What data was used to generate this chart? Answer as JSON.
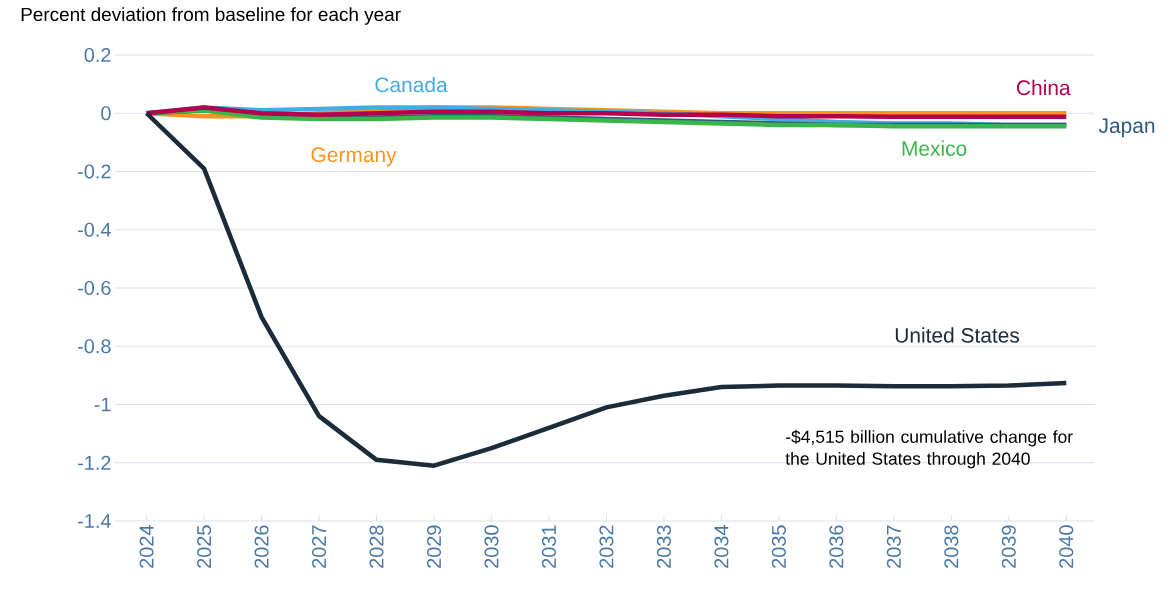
{
  "chart_data": {
    "type": "line",
    "title": "Percent deviation from baseline for each year",
    "categories": [
      "2024",
      "2025",
      "2026",
      "2027",
      "2028",
      "2029",
      "2030",
      "2031",
      "2032",
      "2033",
      "2034",
      "2035",
      "2036",
      "2037",
      "2038",
      "2039",
      "2040"
    ],
    "series": [
      {
        "name": "Germany",
        "color": "#f7941d",
        "values": [
          0,
          -0.01,
          -0.01,
          0,
          0.01,
          0.02,
          0.02,
          0.015,
          0.01,
          0.005,
          0,
          0,
          0,
          0,
          0,
          0,
          0
        ]
      },
      {
        "name": "Canada",
        "color": "#41ade4",
        "values": [
          0,
          0.02,
          0.01,
          0.015,
          0.02,
          0.02,
          0.015,
          0.01,
          0.005,
          0,
          -0.01,
          -0.02,
          -0.03,
          -0.035,
          -0.035,
          -0.04,
          -0.04
        ]
      },
      {
        "name": "Japan",
        "color": "#2f5a7f",
        "values": [
          0,
          0.01,
          -0.01,
          -0.015,
          -0.015,
          -0.01,
          -0.01,
          -0.015,
          -0.02,
          -0.025,
          -0.03,
          -0.035,
          -0.04,
          -0.04,
          -0.04,
          -0.04,
          -0.04
        ]
      },
      {
        "name": "Mexico",
        "color": "#3ab54a",
        "values": [
          0,
          0.01,
          -0.015,
          -0.02,
          -0.02,
          -0.015,
          -0.015,
          -0.02,
          -0.025,
          -0.03,
          -0.035,
          -0.04,
          -0.04,
          -0.045,
          -0.045,
          -0.045,
          -0.045
        ]
      },
      {
        "name": "China",
        "color": "#b5004f",
        "values": [
          0,
          0.02,
          0,
          -0.005,
          0,
          0.005,
          0.005,
          0,
          0,
          -0.005,
          -0.005,
          -0.01,
          -0.01,
          -0.012,
          -0.012,
          -0.012,
          -0.012
        ]
      },
      {
        "name": "United States",
        "color": "#1c2b39",
        "values": [
          0,
          -0.19,
          -0.7,
          -1.04,
          -1.19,
          -1.21,
          -1.15,
          -1.08,
          -1.01,
          -0.97,
          -0.94,
          -0.935,
          -0.935,
          -0.937,
          -0.937,
          -0.935,
          -0.926
        ]
      }
    ],
    "ylim": [
      -1.4,
      0.2
    ],
    "yticks": [
      0.2,
      0,
      -0.2,
      -0.4,
      -0.6,
      -0.8,
      -1,
      -1.2,
      -1.4
    ],
    "grid": "y",
    "legend": false,
    "marker": "none",
    "line_style": "solid",
    "annotations": [
      "-$4,515 billion cumulative change for the United States through 2040"
    ]
  }
}
